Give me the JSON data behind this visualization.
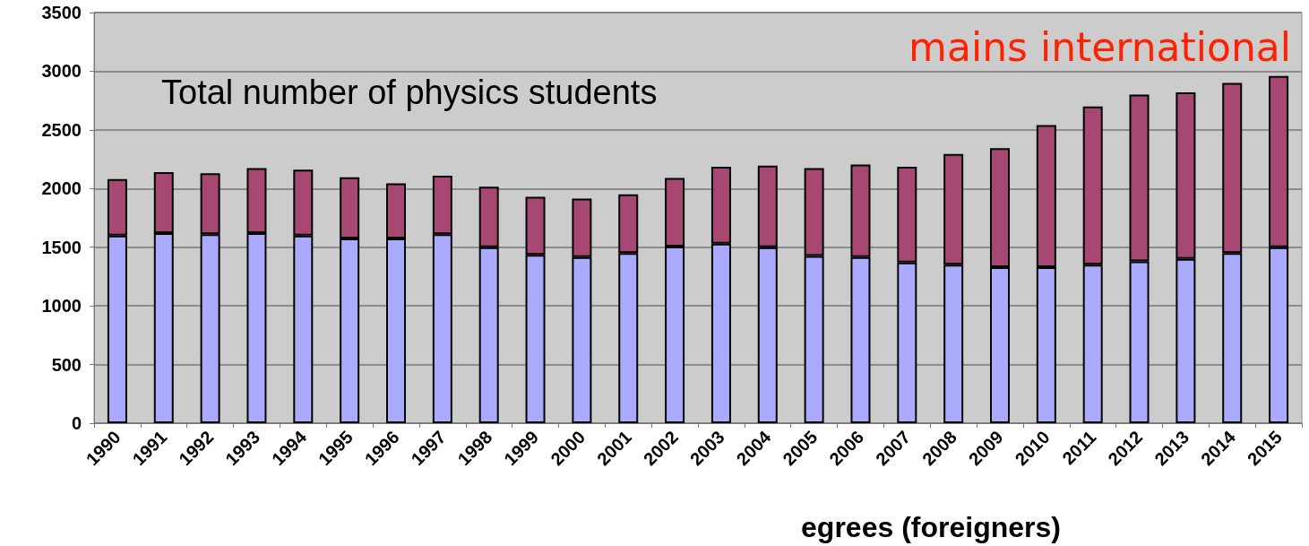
{
  "chart_data": {
    "type": "bar",
    "title": "Total number of physics students",
    "xlabel": "egrees (foreigners)",
    "stacked": true,
    "categories": [
      "1990",
      "1991",
      "1992",
      "1993",
      "1994",
      "1995",
      "1996",
      "1997",
      "1998",
      "1999",
      "2000",
      "2001",
      "2002",
      "2003",
      "2004",
      "2005",
      "2006",
      "2007",
      "2008",
      "2009",
      "2010",
      "2011",
      "2012",
      "2013",
      "2014",
      "2015"
    ],
    "series": [
      {
        "color": "#aaaaff",
        "values": [
          1600,
          1620,
          1610,
          1620,
          1600,
          1575,
          1575,
          1610,
          1500,
          1435,
          1415,
          1450,
          1505,
          1530,
          1500,
          1425,
          1415,
          1370,
          1350,
          1330,
          1330,
          1350,
          1380,
          1400,
          1450,
          1500
        ]
      },
      {
        "color": "#a64872",
        "values": [
          480,
          520,
          520,
          555,
          560,
          520,
          470,
          500,
          515,
          495,
          500,
          500,
          585,
          655,
          695,
          750,
          790,
          815,
          945,
          1015,
          1210,
          1350,
          1420,
          1420,
          1450,
          1460
        ]
      }
    ],
    "ylim": [
      0,
      3500
    ],
    "yticks": [
      0,
      500,
      1000,
      1500,
      2000,
      2500,
      3000,
      3500
    ],
    "grid": "y",
    "annotations": [
      "mains international"
    ]
  }
}
